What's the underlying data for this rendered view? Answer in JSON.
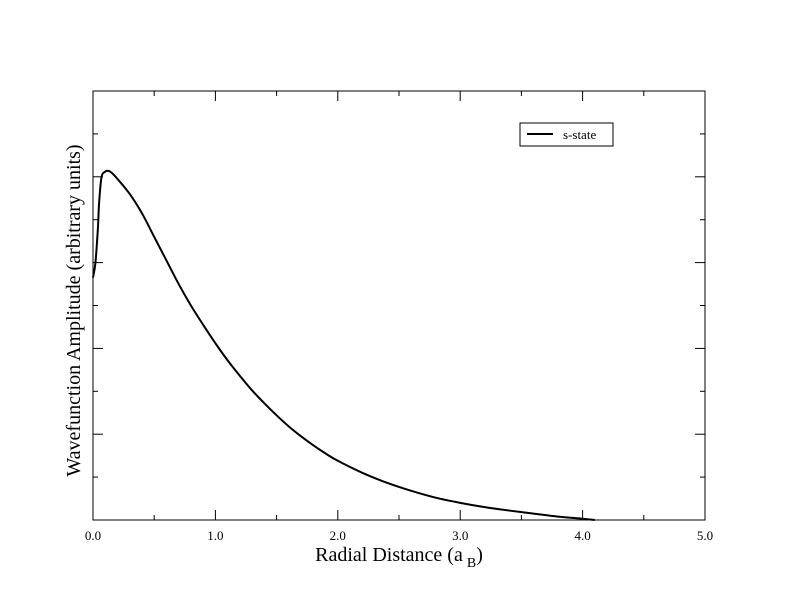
{
  "chart_data": {
    "type": "line",
    "title": "",
    "xlabel": "Radial Distance (a",
    "xlabel_subscript": "B",
    "xlabel_close": ")",
    "ylabel": "Wavefunction Amplitude (arbitrary units)",
    "xlim": [
      0.0,
      5.0
    ],
    "ylim": [
      0.0,
      1.0
    ],
    "x_ticks": [
      0.0,
      1.0,
      2.0,
      3.0,
      4.0,
      5.0
    ],
    "x_tick_labels": [
      "0.0",
      "1.0",
      "2.0",
      "3.0",
      "4.0",
      "5.0"
    ],
    "x_minor_step": 0.5,
    "y_major_ticks": [
      0.2,
      0.4,
      0.6,
      0.8
    ],
    "y_minor_ticks": [
      0.1,
      0.3,
      0.5,
      0.7,
      0.9
    ],
    "y_tick_labels_shown": false,
    "grid": false,
    "legend_position": "top-right",
    "series": [
      {
        "name": "s-state",
        "color": "#000000",
        "x": [
          0.0,
          0.02,
          0.04,
          0.05,
          0.07,
          0.1,
          0.12,
          0.15,
          0.2,
          0.3,
          0.4,
          0.5,
          0.6,
          0.7,
          0.8,
          0.9,
          1.0,
          1.1,
          1.2,
          1.3,
          1.4,
          1.5,
          1.6,
          1.7,
          1.8,
          1.9,
          2.0,
          2.2,
          2.4,
          2.6,
          2.8,
          3.0,
          3.2,
          3.4,
          3.6,
          3.8,
          4.0,
          4.1
        ],
        "y": [
          0.565,
          0.6,
          0.68,
          0.74,
          0.8,
          0.812,
          0.814,
          0.81,
          0.795,
          0.76,
          0.715,
          0.66,
          0.605,
          0.55,
          0.5,
          0.455,
          0.412,
          0.372,
          0.336,
          0.302,
          0.272,
          0.244,
          0.218,
          0.195,
          0.174,
          0.155,
          0.138,
          0.11,
          0.087,
          0.068,
          0.052,
          0.04,
          0.03,
          0.022,
          0.015,
          0.008,
          0.003,
          0.0
        ]
      }
    ]
  }
}
